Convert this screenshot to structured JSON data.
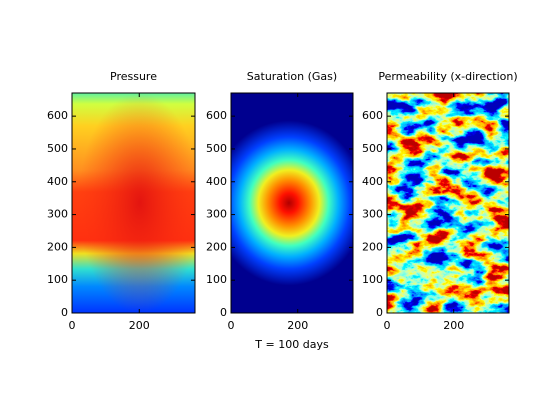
{
  "chart_data": [
    {
      "type": "heatmap",
      "title": "Pressure",
      "xlim": [
        0,
        365.76
      ],
      "ylim": [
        0,
        670.56
      ],
      "xticks": [
        0,
        200
      ],
      "yticks": [
        0,
        100,
        200,
        300,
        400,
        500,
        600
      ]
    },
    {
      "type": "heatmap",
      "title": "Saturation (Gas)",
      "xlabel": "T = 100 days",
      "xlim": [
        0,
        365.76
      ],
      "ylim": [
        0,
        670.56
      ],
      "xticks": [
        0,
        200
      ],
      "yticks": [
        0,
        100,
        200,
        300,
        400,
        500,
        600
      ]
    },
    {
      "type": "heatmap",
      "title": "Permeability (x-direction)",
      "xlim": [
        0,
        365.76
      ],
      "ylim": [
        0,
        670.56
      ],
      "xticks": [
        0,
        200
      ],
      "yticks": [
        0,
        100,
        200,
        300,
        400,
        500,
        600
      ]
    }
  ]
}
